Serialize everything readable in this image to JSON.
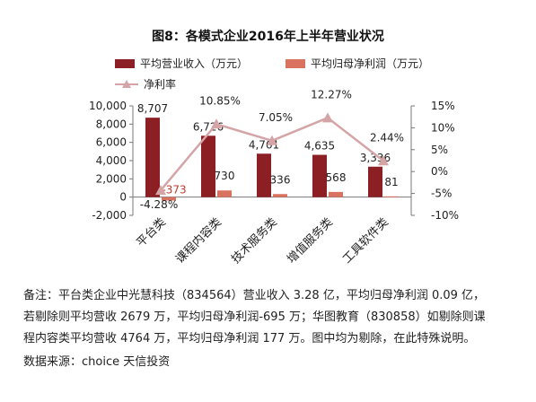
{
  "title": "图8：各模式企业2016年上半年营业状况",
  "colors": {
    "bar_revenue": "#8b1f24",
    "bar_profit": "#d9725f",
    "line_rate": "#d4a4a6",
    "negative_label": "#c0392b"
  },
  "chart_data": {
    "type": "bar",
    "categories": [
      "平台类",
      "课程内容类",
      "技术服务类",
      "增值服务类",
      "工具软件类"
    ],
    "series": [
      {
        "name": "平均营业收入（万元）",
        "type": "bar",
        "axis": "left",
        "values": [
          8707,
          6726,
          4761,
          4635,
          3336
        ],
        "labels": [
          "8,707",
          "6,726",
          "4,761",
          "4,635",
          "3,336"
        ]
      },
      {
        "name": "平均归母净利润（万元）",
        "type": "bar",
        "axis": "left",
        "values": [
          -373,
          730,
          336,
          568,
          81
        ],
        "labels": [
          "-373",
          "730",
          "336",
          "568",
          "81"
        ]
      },
      {
        "name": "净利率",
        "type": "line",
        "axis": "right",
        "values": [
          -4.28,
          10.85,
          7.05,
          12.27,
          2.44
        ],
        "labels": [
          "-4.28%",
          "10.85%",
          "7.05%",
          "12.27%",
          "2.44%"
        ]
      }
    ],
    "y_left": {
      "ylim": [
        -2000,
        10000
      ],
      "ticks": [
        "-2,000",
        "0",
        "2,000",
        "4,000",
        "6,000",
        "8,000",
        "10,000"
      ],
      "tick_values": [
        -2000,
        0,
        2000,
        4000,
        6000,
        8000,
        10000
      ]
    },
    "y_right": {
      "ylim": [
        -10,
        15
      ],
      "ticks": [
        "-10%",
        "-5%",
        "0%",
        "5%",
        "10%",
        "15%"
      ],
      "tick_values": [
        -10,
        -5,
        0,
        5,
        10,
        15
      ]
    },
    "legend": "top",
    "grid": false
  },
  "notes": [
    "备注：平台类企业中光慧科技（834564）营业收入 3.28 亿，平均归母净利润 0.09 亿，",
    "若剔除则平均营收 2679 万，平均归母净利润-695 万；华图教育（830858）如剔除则课",
    "程内容类平均营收 4764 万，平均归母净利润 177 万。图中均为剔除，在此特殊说明。",
    "数据来源：choice  天信投资"
  ]
}
